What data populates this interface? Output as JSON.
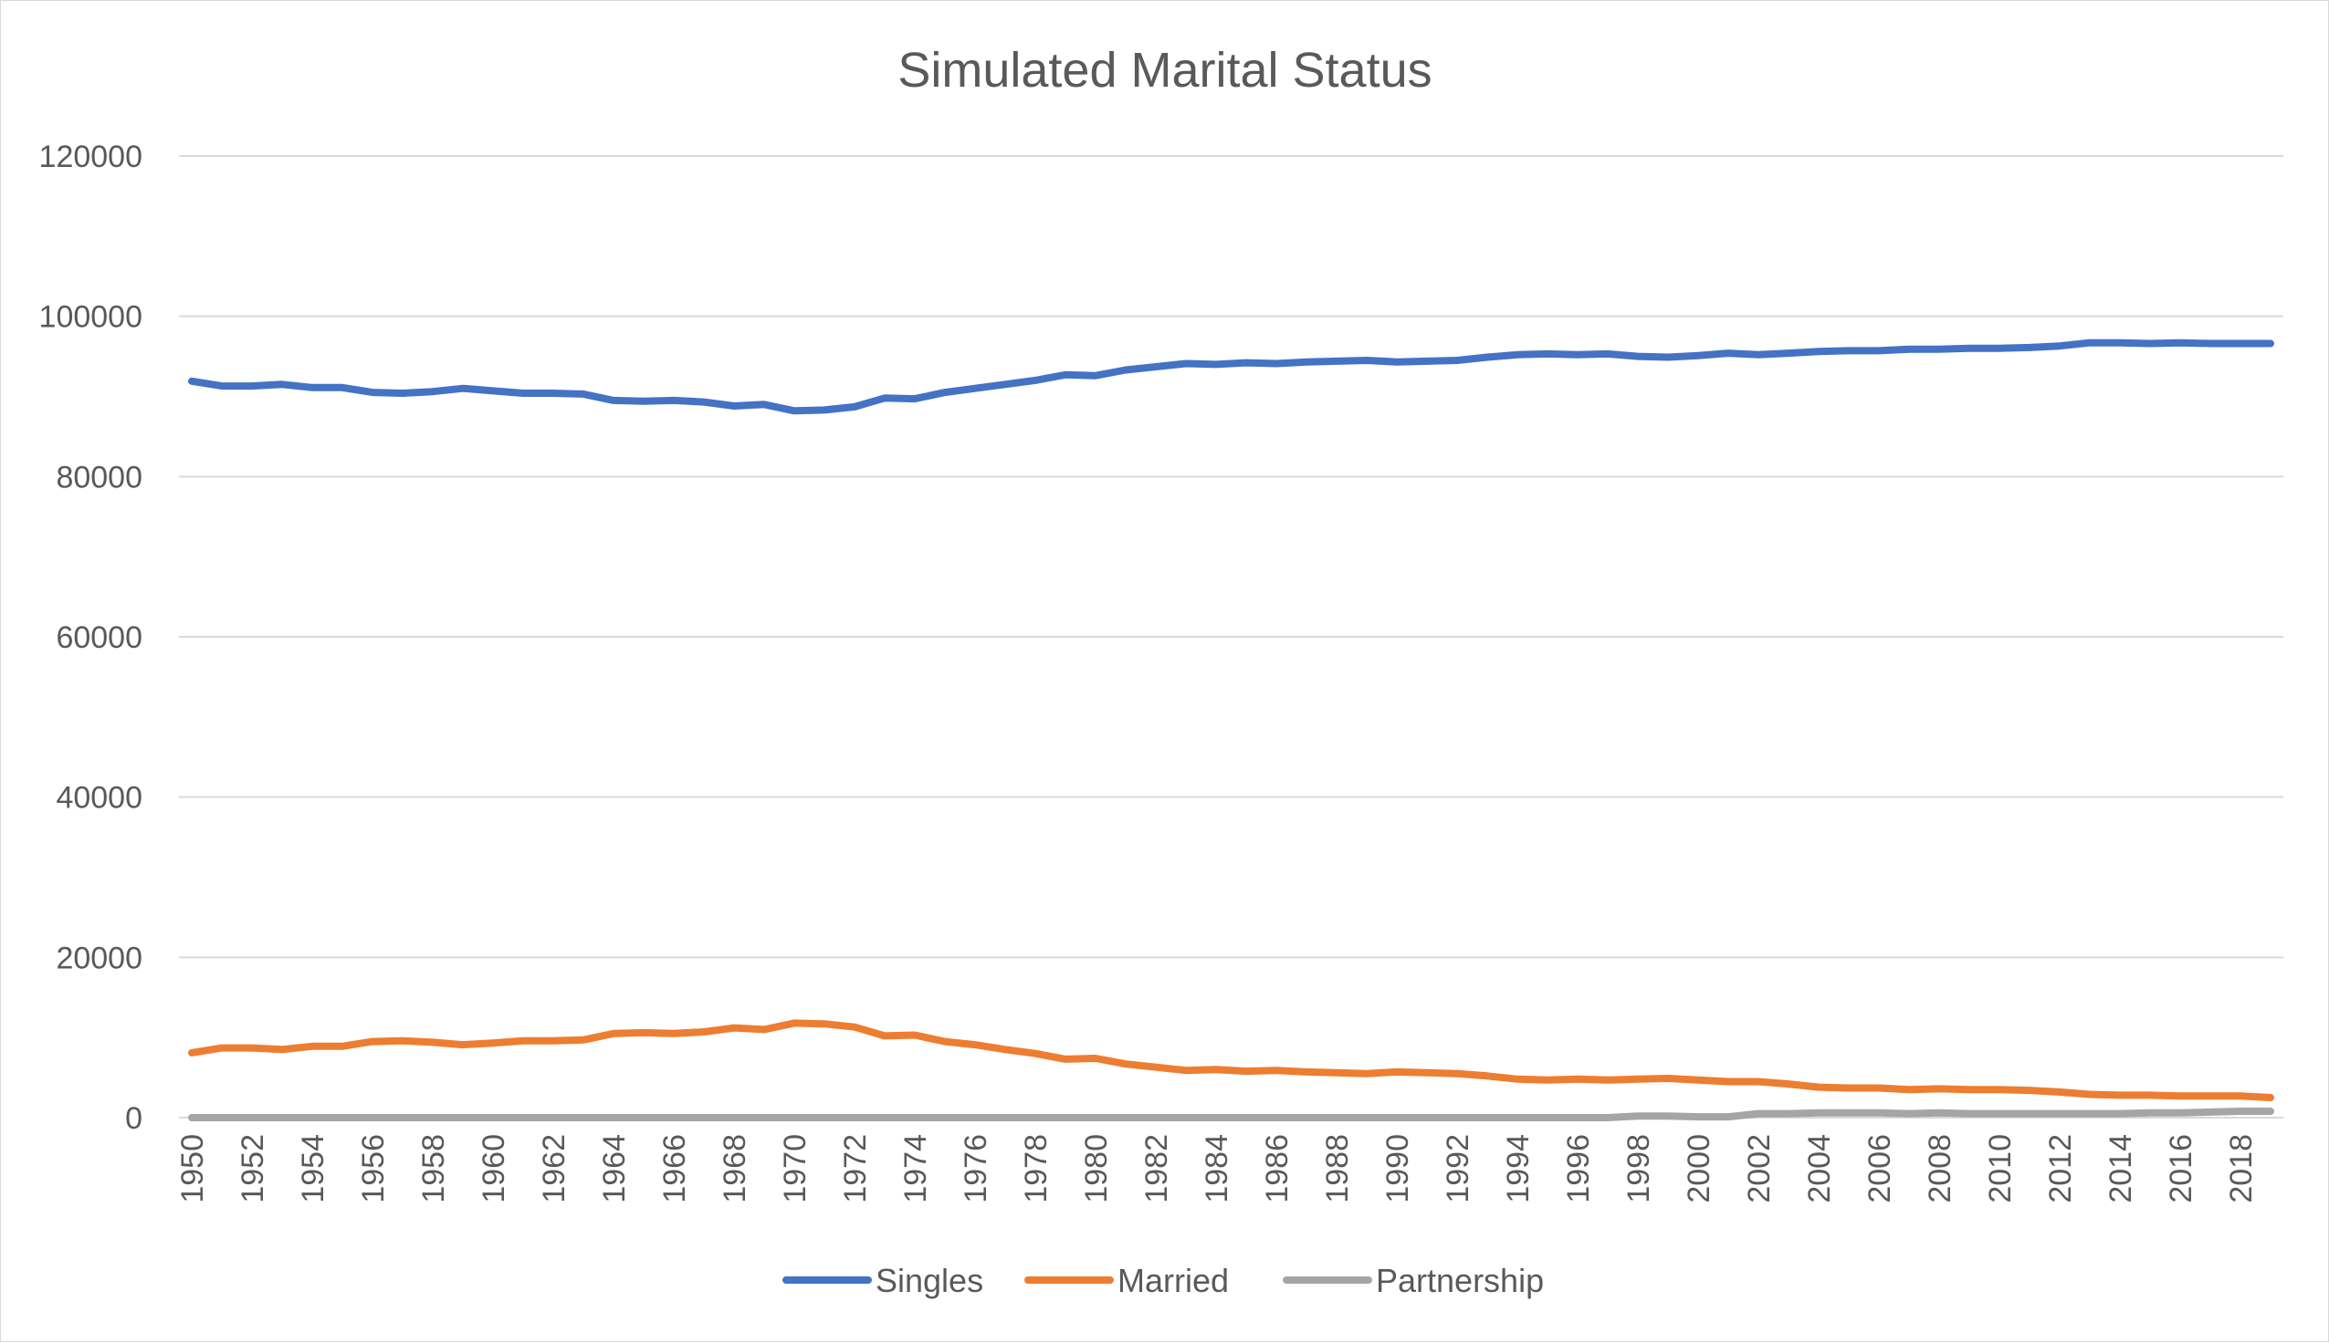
{
  "chart_data": {
    "type": "line",
    "title": "Simulated Marital Status",
    "xlabel": "",
    "ylabel": "",
    "ylim": [
      0,
      120000
    ],
    "yticks": [
      "0",
      "20000",
      "40000",
      "60000",
      "80000",
      "100000",
      "120000"
    ],
    "grid": true,
    "legend_position": "bottom",
    "x": [
      1950,
      1951,
      1952,
      1953,
      1954,
      1955,
      1956,
      1957,
      1958,
      1959,
      1960,
      1961,
      1962,
      1963,
      1964,
      1965,
      1966,
      1967,
      1968,
      1969,
      1970,
      1971,
      1972,
      1973,
      1974,
      1975,
      1976,
      1977,
      1978,
      1979,
      1980,
      1981,
      1982,
      1983,
      1984,
      1985,
      1986,
      1987,
      1988,
      1989,
      1990,
      1991,
      1992,
      1993,
      1994,
      1995,
      1996,
      1997,
      1998,
      1999,
      2000,
      2001,
      2002,
      2003,
      2004,
      2005,
      2006,
      2007,
      2008,
      2009,
      2010,
      2011,
      2012,
      2013,
      2014,
      2015,
      2016,
      2017,
      2018,
      2019
    ],
    "xtick_labels": [
      "1950",
      "1952",
      "1954",
      "1956",
      "1958",
      "1960",
      "1962",
      "1964",
      "1966",
      "1968",
      "1970",
      "1972",
      "1974",
      "1976",
      "1978",
      "1980",
      "1982",
      "1984",
      "1986",
      "1988",
      "1990",
      "1992",
      "1994",
      "1996",
      "1998",
      "2000",
      "2002",
      "2004",
      "2006",
      "2008",
      "2010",
      "2012",
      "2014",
      "2016",
      "2018"
    ],
    "series": [
      {
        "name": "Singles",
        "color": "#4472c4",
        "values": [
          91900,
          91300,
          91300,
          91500,
          91100,
          91100,
          90500,
          90400,
          90600,
          91000,
          90700,
          90400,
          90400,
          90300,
          89500,
          89400,
          89500,
          89300,
          88800,
          89000,
          88200,
          88300,
          88700,
          89800,
          89700,
          90500,
          91000,
          91500,
          92000,
          92700,
          92600,
          93300,
          93700,
          94100,
          94000,
          94200,
          94100,
          94300,
          94400,
          94500,
          94300,
          94400,
          94500,
          94900,
          95200,
          95300,
          95200,
          95300,
          95000,
          94900,
          95100,
          95400,
          95200,
          95400,
          95600,
          95700,
          95700,
          95900,
          95900,
          96000,
          96000,
          96100,
          96300,
          96700,
          96700,
          96600,
          96700,
          96600,
          96600,
          96600
        ]
      },
      {
        "name": "Married",
        "color": "#ed7d31",
        "values": [
          8100,
          8700,
          8700,
          8500,
          8900,
          8900,
          9500,
          9600,
          9400,
          9100,
          9300,
          9600,
          9600,
          9700,
          10500,
          10600,
          10500,
          10700,
          11200,
          11000,
          11800,
          11700,
          11300,
          10200,
          10300,
          9500,
          9100,
          8500,
          8000,
          7300,
          7400,
          6700,
          6300,
          5900,
          6000,
          5800,
          5900,
          5700,
          5600,
          5500,
          5700,
          5600,
          5500,
          5200,
          4800,
          4700,
          4800,
          4700,
          4800,
          4900,
          4700,
          4500,
          4500,
          4200,
          3800,
          3700,
          3700,
          3500,
          3600,
          3500,
          3500,
          3400,
          3200,
          2900,
          2800,
          2800,
          2700,
          2700,
          2700,
          2500
        ]
      },
      {
        "name": "Partnership",
        "color": "#a5a5a5",
        "values": [
          0,
          0,
          0,
          0,
          0,
          0,
          0,
          0,
          0,
          0,
          0,
          0,
          0,
          0,
          0,
          0,
          0,
          0,
          0,
          0,
          0,
          0,
          0,
          0,
          0,
          0,
          0,
          0,
          0,
          0,
          0,
          0,
          0,
          0,
          0,
          0,
          0,
          0,
          0,
          0,
          0,
          0,
          0,
          0,
          0,
          0,
          0,
          0,
          200,
          200,
          100,
          100,
          500,
          500,
          600,
          600,
          600,
          500,
          600,
          500,
          500,
          500,
          500,
          500,
          500,
          600,
          600,
          700,
          800,
          800
        ]
      }
    ]
  }
}
